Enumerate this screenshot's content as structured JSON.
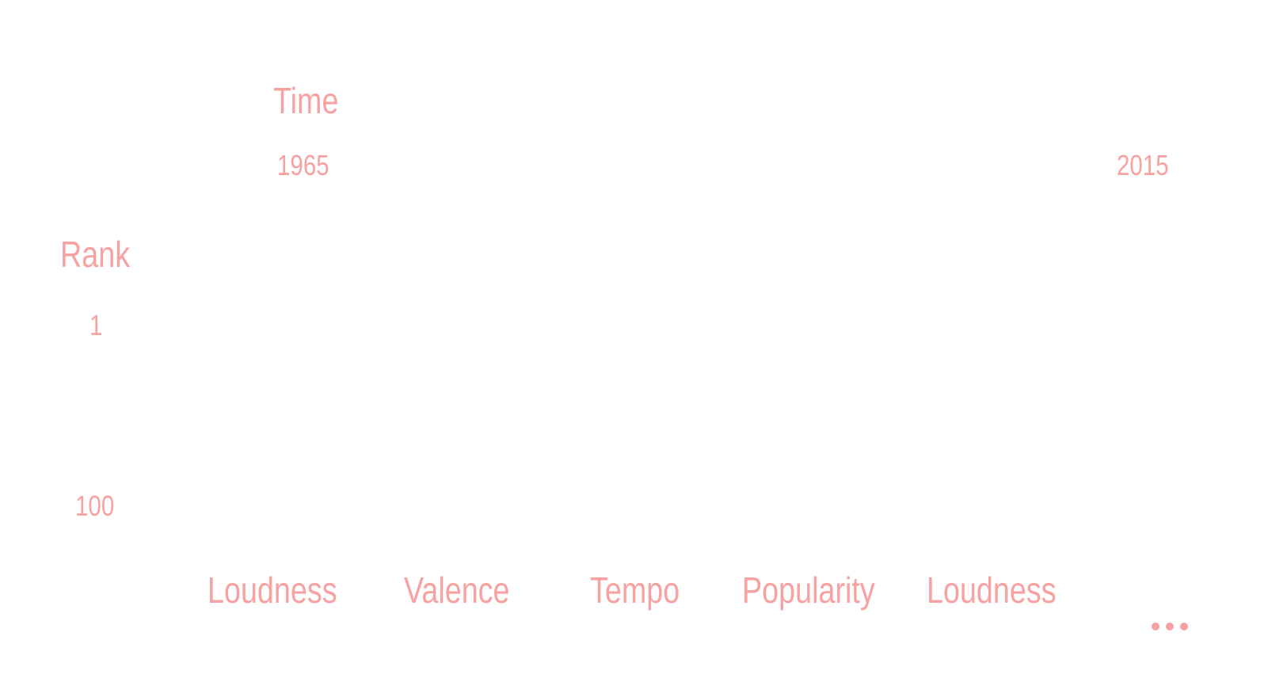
{
  "accent_color": "#f7a1a1",
  "time_axis": {
    "label": "Time",
    "start": "1965",
    "end": "2015"
  },
  "rank_axis": {
    "label": "Rank",
    "top": "1",
    "bottom": "100"
  },
  "attributes": [
    {
      "label": "Loudness"
    },
    {
      "label": "Valence"
    },
    {
      "label": "Tempo"
    },
    {
      "label": "Popularity"
    },
    {
      "label": "Loudness"
    }
  ],
  "more_icon": "ellipsis-icon"
}
